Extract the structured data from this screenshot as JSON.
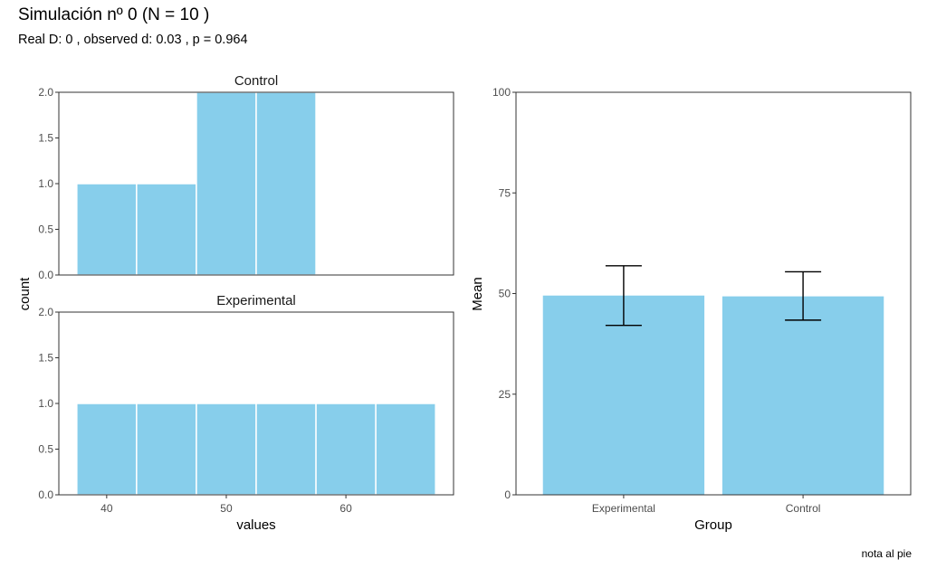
{
  "title": "Simulación nº  0 (N =  10 )",
  "subtitle": "Real D:  0 , observed d:  0.03 , p =  0.964",
  "caption": "nota al pie",
  "colors": {
    "bar_fill": "#87CEEB",
    "bar_outline": "#ffffff",
    "axis": "#333333",
    "errorbar": "#000000"
  },
  "chart_data": [
    {
      "type": "bar",
      "subtype": "histogram",
      "facets": [
        "Control",
        "Experimental"
      ],
      "xlabel": "values",
      "ylabel": "count",
      "xlim": [
        36,
        69
      ],
      "ylim": [
        0,
        2
      ],
      "x_ticks": [
        40,
        50,
        60
      ],
      "x_tick_labels": [
        "40",
        "50",
        "60"
      ],
      "y_ticks": [
        0,
        0.5,
        1,
        1.5,
        2
      ],
      "y_tick_labels": [
        "0.0",
        "0.5",
        "1.0",
        "1.5",
        "2.0"
      ],
      "binwidth": 5,
      "grid": false,
      "panels": [
        {
          "label": "Control",
          "bins": [
            {
              "x0": 37.5,
              "x1": 42.5,
              "count": 1
            },
            {
              "x0": 42.5,
              "x1": 47.5,
              "count": 1
            },
            {
              "x0": 47.5,
              "x1": 52.5,
              "count": 2
            },
            {
              "x0": 52.5,
              "x1": 57.5,
              "count": 2
            }
          ]
        },
        {
          "label": "Experimental",
          "bins": [
            {
              "x0": 37.5,
              "x1": 42.5,
              "count": 1
            },
            {
              "x0": 42.5,
              "x1": 47.5,
              "count": 1
            },
            {
              "x0": 47.5,
              "x1": 52.5,
              "count": 1
            },
            {
              "x0": 52.5,
              "x1": 57.5,
              "count": 1
            },
            {
              "x0": 57.5,
              "x1": 62.5,
              "count": 1
            },
            {
              "x0": 62.5,
              "x1": 67.5,
              "count": 1
            }
          ]
        }
      ]
    },
    {
      "type": "bar",
      "title": "",
      "xlabel": "Group",
      "ylabel": "Mean",
      "categories": [
        "Experimental",
        "Control"
      ],
      "values": [
        49.5,
        49.3
      ],
      "error_low": [
        42.1,
        43.4
      ],
      "error_high": [
        56.9,
        55.4
      ],
      "ylim": [
        0,
        100
      ],
      "y_ticks": [
        0,
        25,
        50,
        75,
        100
      ],
      "y_tick_labels": [
        "0",
        "25",
        "50",
        "75",
        "100"
      ],
      "grid": false
    }
  ]
}
